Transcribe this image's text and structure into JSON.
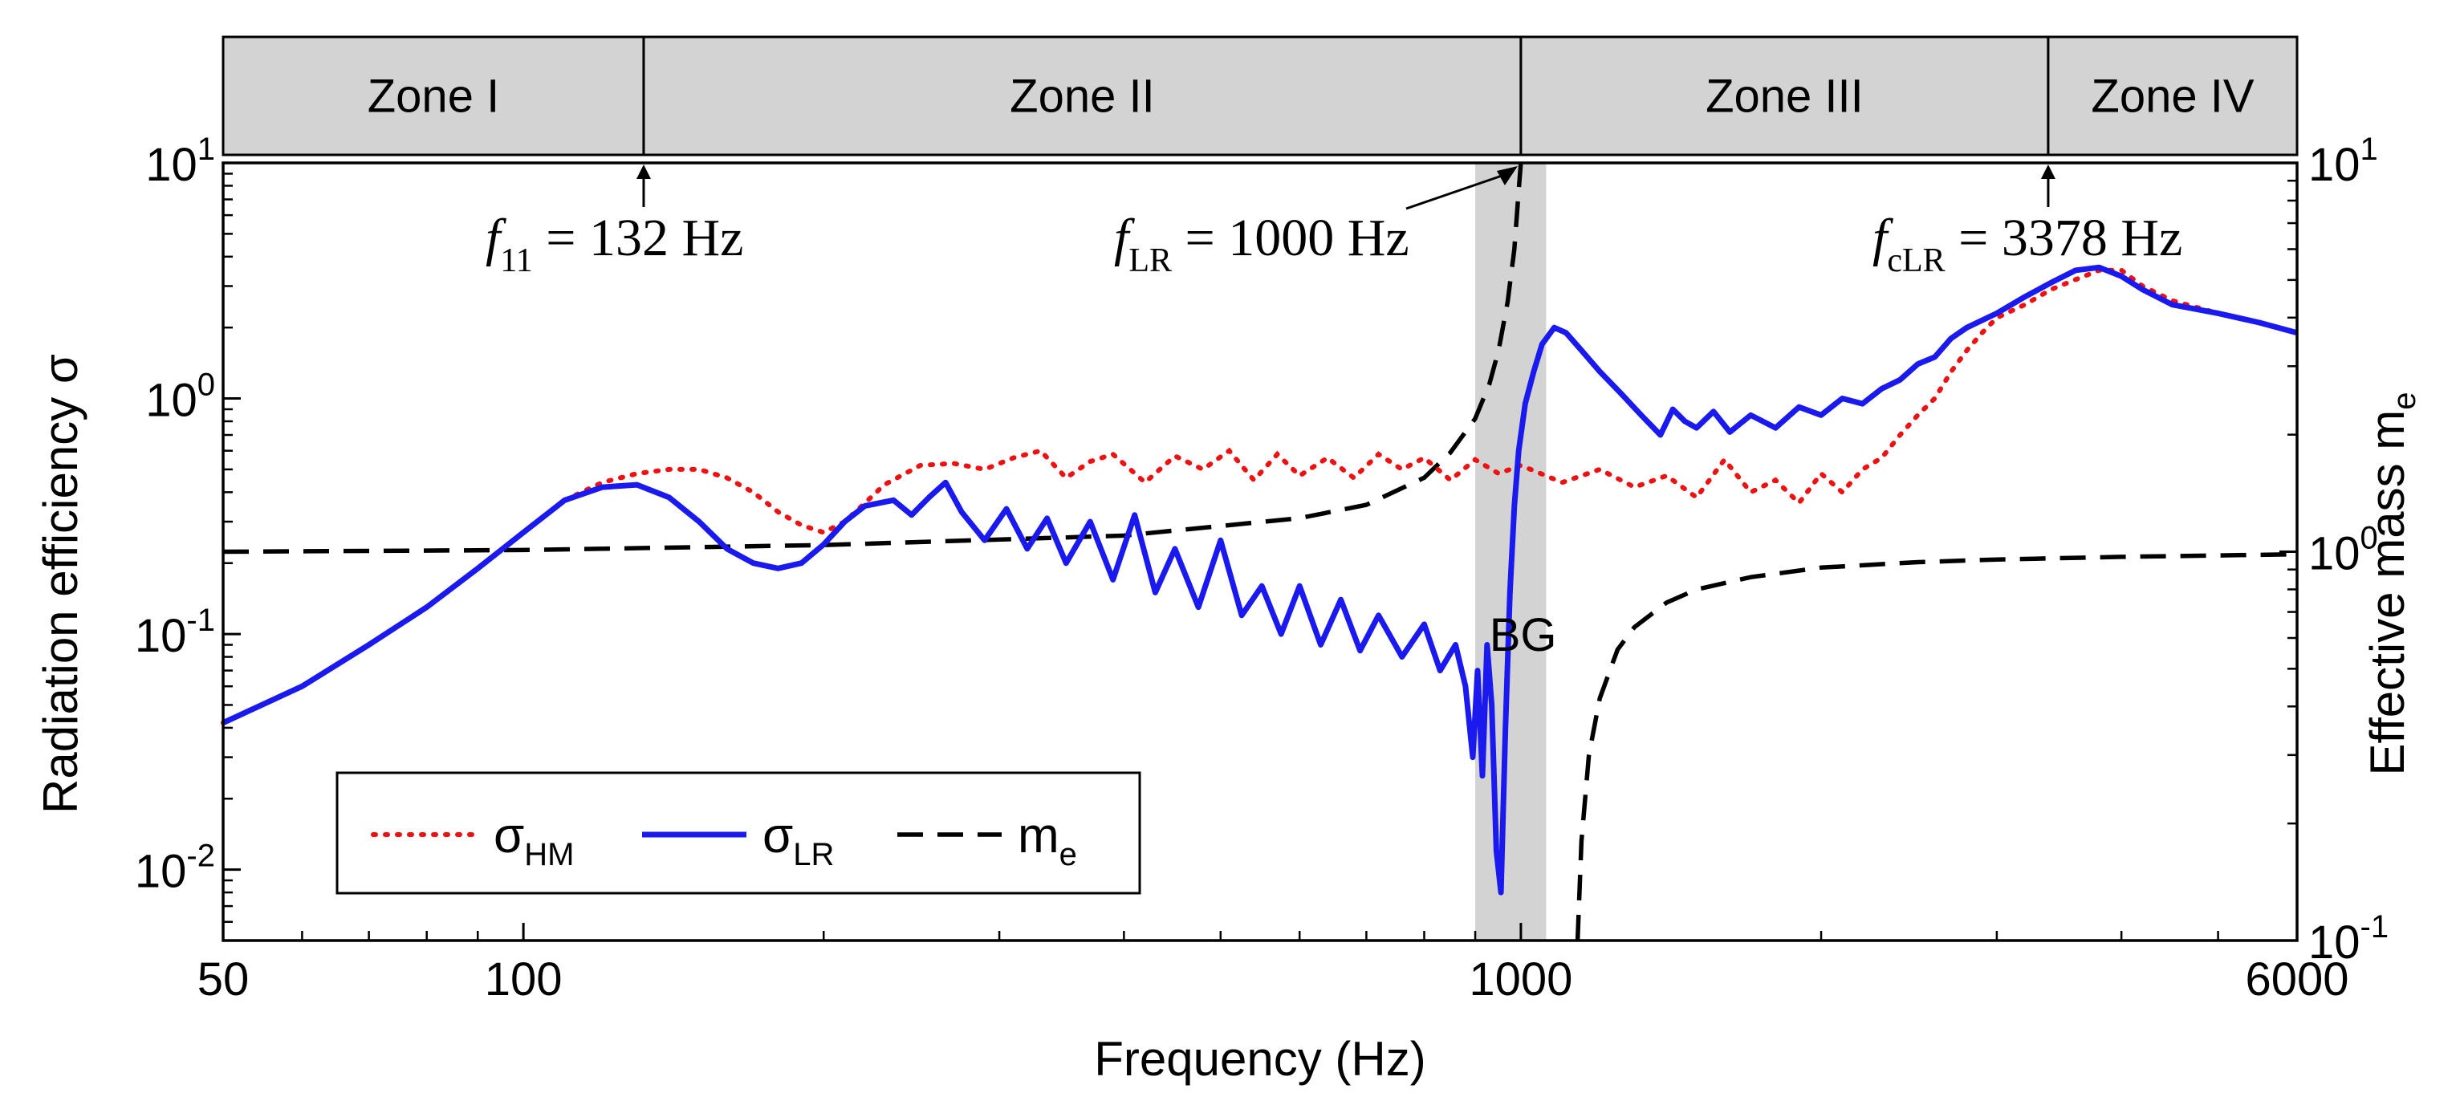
{
  "chart_data": {
    "type": "line",
    "xlabel": "Frequency (Hz)",
    "ylabel_left": "Radiation efficiency σ",
    "ylabel_right": {
      "base": "Effective mass m",
      "sub": "e"
    },
    "x_scale": "log",
    "xlim": [
      50,
      6000
    ],
    "ylim_left": [
      0.005,
      10
    ],
    "ylim_right": [
      0.1,
      10
    ],
    "x_ticks": [
      {
        "value": 50,
        "label": "50"
      },
      {
        "value": 100,
        "label": "100"
      },
      {
        "value": 1000,
        "label": "1000"
      },
      {
        "value": 6000,
        "label": "6000"
      }
    ],
    "y_ticks_left": [
      {
        "value": 0.01,
        "base": "10",
        "exp": "-2"
      },
      {
        "value": 0.1,
        "base": "10",
        "exp": "-1"
      },
      {
        "value": 1,
        "base": "10",
        "exp": "0"
      },
      {
        "value": 10,
        "base": "10",
        "exp": "1"
      }
    ],
    "y_ticks_right": [
      {
        "value": 0.1,
        "base": "10",
        "exp": "-1"
      },
      {
        "value": 1,
        "base": "10",
        "exp": "0"
      },
      {
        "value": 10,
        "base": "10",
        "exp": "1"
      }
    ],
    "zones": [
      {
        "label": "Zone I",
        "from": 50,
        "to": 132
      },
      {
        "label": "Zone II",
        "from": 132,
        "to": 1000
      },
      {
        "label": "Zone III",
        "from": 1000,
        "to": 3378
      },
      {
        "label": "Zone IV",
        "from": 3378,
        "to": 6000
      }
    ],
    "band_gap": {
      "label": "BG",
      "from": 900,
      "to": 1060,
      "label_x": 1005,
      "label_y": 0.085
    },
    "markers": [
      {
        "italic": "f",
        "sub": "11",
        "rest": " = 132 Hz",
        "freq": 132
      },
      {
        "italic": "f",
        "sub": "LR",
        "rest": " = 1000 Hz",
        "freq": 1000
      },
      {
        "italic": "f",
        "sub": "cLR",
        "rest": " = 3378 Hz",
        "freq": 3378
      }
    ],
    "legend_position": "bottom-left",
    "series": [
      {
        "name": "σ_HM",
        "label_base": "σ",
        "label_sub": "HM",
        "axis": "left",
        "style": "dotted",
        "color": "#ee1111",
        "x": [
          50,
          60,
          70,
          80,
          90,
          100,
          110,
          120,
          130,
          140,
          150,
          160,
          170,
          180,
          190,
          200,
          210,
          220,
          230,
          250,
          270,
          290,
          310,
          330,
          350,
          370,
          390,
          420,
          450,
          480,
          510,
          540,
          570,
          600,
          640,
          680,
          720,
          760,
          800,
          850,
          900,
          950,
          1000,
          1100,
          1200,
          1300,
          1400,
          1500,
          1600,
          1700,
          1800,
          1900,
          2000,
          2100,
          2200,
          2300,
          2400,
          2500,
          2600,
          2700,
          2800,
          2900,
          3000,
          3200,
          3400,
          3600,
          3800,
          4000,
          4200,
          4500,
          5000,
          5500,
          6000
        ],
        "y": [
          0.042,
          0.06,
          0.09,
          0.13,
          0.19,
          0.27,
          0.37,
          0.44,
          0.48,
          0.5,
          0.5,
          0.46,
          0.4,
          0.33,
          0.29,
          0.27,
          0.3,
          0.36,
          0.43,
          0.52,
          0.53,
          0.5,
          0.56,
          0.6,
          0.46,
          0.54,
          0.58,
          0.44,
          0.57,
          0.5,
          0.6,
          0.45,
          0.58,
          0.47,
          0.56,
          0.46,
          0.58,
          0.5,
          0.56,
          0.45,
          0.55,
          0.48,
          0.52,
          0.44,
          0.5,
          0.42,
          0.47,
          0.38,
          0.55,
          0.4,
          0.45,
          0.36,
          0.48,
          0.4,
          0.5,
          0.56,
          0.7,
          0.85,
          1.0,
          1.3,
          1.6,
          1.9,
          2.2,
          2.5,
          2.9,
          3.2,
          3.5,
          3.5,
          3.0,
          2.6,
          2.3,
          2.1,
          1.9
        ]
      },
      {
        "name": "σ_LR",
        "label_base": "σ",
        "label_sub": "LR",
        "axis": "left",
        "style": "solid",
        "color": "#1a1aee",
        "x": [
          50,
          60,
          70,
          80,
          90,
          100,
          110,
          120,
          130,
          140,
          150,
          160,
          170,
          180,
          190,
          200,
          210,
          220,
          235,
          245,
          255,
          265,
          275,
          290,
          305,
          320,
          335,
          350,
          370,
          390,
          410,
          430,
          450,
          475,
          500,
          525,
          550,
          575,
          600,
          630,
          660,
          690,
          720,
          760,
          800,
          830,
          860,
          880,
          895,
          905,
          915,
          925,
          935,
          945,
          955,
          965,
          975,
          985,
          995,
          1010,
          1030,
          1050,
          1080,
          1110,
          1150,
          1200,
          1260,
          1320,
          1380,
          1420,
          1460,
          1500,
          1560,
          1620,
          1700,
          1800,
          1900,
          2000,
          2100,
          2200,
          2300,
          2400,
          2500,
          2600,
          2700,
          2800,
          3000,
          3200,
          3400,
          3600,
          3800,
          4000,
          4200,
          4500,
          5000,
          5500,
          6000
        ],
        "y": [
          0.042,
          0.06,
          0.09,
          0.13,
          0.19,
          0.27,
          0.37,
          0.42,
          0.43,
          0.38,
          0.3,
          0.23,
          0.2,
          0.19,
          0.2,
          0.24,
          0.3,
          0.35,
          0.37,
          0.32,
          0.38,
          0.44,
          0.33,
          0.25,
          0.34,
          0.23,
          0.31,
          0.2,
          0.3,
          0.17,
          0.32,
          0.15,
          0.23,
          0.13,
          0.25,
          0.12,
          0.16,
          0.1,
          0.16,
          0.09,
          0.14,
          0.085,
          0.12,
          0.08,
          0.11,
          0.07,
          0.09,
          0.06,
          0.03,
          0.07,
          0.025,
          0.09,
          0.05,
          0.012,
          0.008,
          0.04,
          0.15,
          0.35,
          0.6,
          0.95,
          1.3,
          1.7,
          2.0,
          1.9,
          1.6,
          1.3,
          1.05,
          0.85,
          0.7,
          0.9,
          0.8,
          0.75,
          0.88,
          0.72,
          0.85,
          0.75,
          0.92,
          0.85,
          1.0,
          0.95,
          1.1,
          1.2,
          1.4,
          1.5,
          1.8,
          2.0,
          2.3,
          2.7,
          3.1,
          3.5,
          3.6,
          3.3,
          2.9,
          2.5,
          2.3,
          2.1,
          1.9
        ]
      },
      {
        "name": "m_e",
        "label_base": "m",
        "label_sub": "e",
        "axis": "right",
        "style": "dashed",
        "color": "#000000",
        "x": [
          50,
          100,
          200,
          400,
          600,
          700,
          800,
          850,
          900,
          930,
          950,
          970,
          985,
          995,
          1000
        ],
        "y": [
          1.0,
          1.01,
          1.04,
          1.1,
          1.22,
          1.32,
          1.55,
          1.8,
          2.2,
          2.7,
          3.3,
          4.4,
          6.0,
          8.5,
          10.0
        ],
        "x2": [
          1140,
          1150,
          1170,
          1200,
          1250,
          1300,
          1400,
          1500,
          1700,
          2000,
          2500,
          3000,
          4000,
          6000
        ],
        "y2": [
          0.1,
          0.18,
          0.3,
          0.42,
          0.56,
          0.64,
          0.74,
          0.8,
          0.86,
          0.91,
          0.94,
          0.955,
          0.97,
          0.985
        ]
      }
    ]
  }
}
